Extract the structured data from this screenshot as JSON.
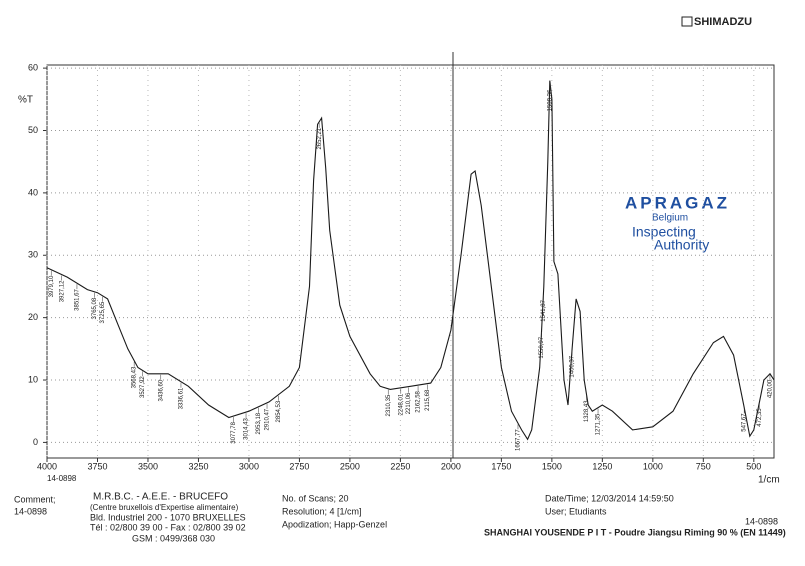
{
  "brand": "SHIMADZU",
  "chart_data": {
    "type": "line",
    "y_label": "%T",
    "x_label": "1/cm",
    "sample_id": "14-0898",
    "xlim": [
      4000,
      400
    ],
    "ylim": [
      -2.5,
      60.5
    ],
    "xticks": [
      4000,
      3750,
      3500,
      3250,
      3000,
      2750,
      2500,
      2250,
      2000,
      1750,
      1500,
      1250,
      1000,
      750,
      500
    ],
    "yticks": [
      0,
      10,
      20,
      30,
      40,
      50,
      60
    ],
    "grid": true,
    "color": "#1a1a1a",
    "x": [
      4000,
      3900,
      3800,
      3750,
      3700,
      3650,
      3600,
      3550,
      3500,
      3400,
      3300,
      3200,
      3100,
      3000,
      2900,
      2800,
      2750,
      2700,
      2680,
      2660,
      2640,
      2620,
      2600,
      2550,
      2500,
      2400,
      2350,
      2300,
      2200,
      2100,
      2050,
      2000,
      1950,
      1900,
      1880,
      1850,
      1800,
      1750,
      1700,
      1650,
      1620,
      1600,
      1560,
      1540,
      1520,
      1510,
      1500,
      1490,
      1470,
      1440,
      1420,
      1400,
      1380,
      1360,
      1340,
      1320,
      1300,
      1250,
      1200,
      1100,
      1000,
      900,
      800,
      700,
      650,
      600,
      550,
      520,
      500,
      450,
      420,
      400
    ],
    "values": [
      28,
      26.5,
      24.5,
      24,
      23,
      19,
      15,
      12,
      11,
      11,
      9,
      6,
      4,
      5,
      6.5,
      9,
      12,
      25,
      42,
      51,
      52,
      44,
      34,
      22,
      17,
      11,
      9,
      8.5,
      9,
      9.5,
      12,
      18,
      30,
      43,
      43.5,
      38,
      25,
      12,
      5,
      2,
      0.5,
      2,
      12,
      25,
      45,
      58,
      55,
      29,
      27,
      10,
      6,
      15,
      23,
      21,
      10,
      6,
      5,
      6,
      5,
      2,
      2.5,
      5,
      11,
      16,
      17,
      14,
      6,
      1,
      2,
      10,
      11,
      10
    ],
    "annotations": [
      {
        "value": 3979.1,
        "label": "3979,10"
      },
      {
        "value": 3927.12,
        "label": "3927,12"
      },
      {
        "value": 3851.67,
        "label": "3851,67"
      },
      {
        "value": 3765.08,
        "label": "3765,08"
      },
      {
        "value": 3725.65,
        "label": "3725,65"
      },
      {
        "value": 3568.43,
        "label": "3568,43"
      },
      {
        "value": 3527.92,
        "label": "3527,92"
      },
      {
        "value": 3436.6,
        "label": "3436,60"
      },
      {
        "value": 3336.61,
        "label": "3336,61"
      },
      {
        "value": 3077.78,
        "label": "3077,78"
      },
      {
        "value": 3014.43,
        "label": "3014,43"
      },
      {
        "value": 2953.18,
        "label": "2953,18"
      },
      {
        "value": 2910.47,
        "label": "2910,47"
      },
      {
        "value": 2854.53,
        "label": "2854,53"
      },
      {
        "value": 2652.21,
        "label": "2652,21"
      },
      {
        "value": 2310.35,
        "label": "2310,35"
      },
      {
        "value": 2248.01,
        "label": "2248,01"
      },
      {
        "value": 2210.06,
        "label": "2210,06"
      },
      {
        "value": 2162.58,
        "label": "2162,58"
      },
      {
        "value": 2115.68,
        "label": "2115,68"
      },
      {
        "value": 1667.77,
        "label": "1667,77"
      },
      {
        "value": 1550.97,
        "label": "1550,97"
      },
      {
        "value": 1541.87,
        "label": "1541,87"
      },
      {
        "value": 1508.36,
        "label": "1508,36"
      },
      {
        "value": 1400.37,
        "label": "1400,37"
      },
      {
        "value": 1328.43,
        "label": "1328,43"
      },
      {
        "value": 1271.35,
        "label": "1271,35"
      },
      {
        "value": 547.67,
        "label": "547,67"
      },
      {
        "value": 472.35,
        "label": "472,35"
      },
      {
        "value": 420.0,
        "label": "420,00"
      }
    ]
  },
  "stamp": {
    "name": "APRAGAZ",
    "country": "Belgium",
    "line1": "Inspecting",
    "line2": "Authority"
  },
  "footer": {
    "comment_label": "Comment;",
    "comment": "14-0898",
    "lab": "M.R.B.C. - A.E.E. - BRUCEFO",
    "lab_full": "(Centre bruxellois d'Expertise alimentaire)",
    "address": "Bld. Industriel 200 - 1070 BRUXELLES",
    "phone": "Tél : 02/800 39 00 - Fax : 02/800 39 02",
    "gsm": "GSM : 0499/368 030",
    "scans": "No. of Scans; 20",
    "resolution": "Resolution; 4 [1/cm]",
    "apodization": "Apodization; Happ-Genzel",
    "datetime": "Date/Time; 12/03/2014 14:59:50",
    "user": "User; Etudiants",
    "id": "14-0898",
    "sample": "SHANGHAI YOUSENDE P I T - Poudre Jiangsu Riming 90 % (EN 11449)"
  }
}
